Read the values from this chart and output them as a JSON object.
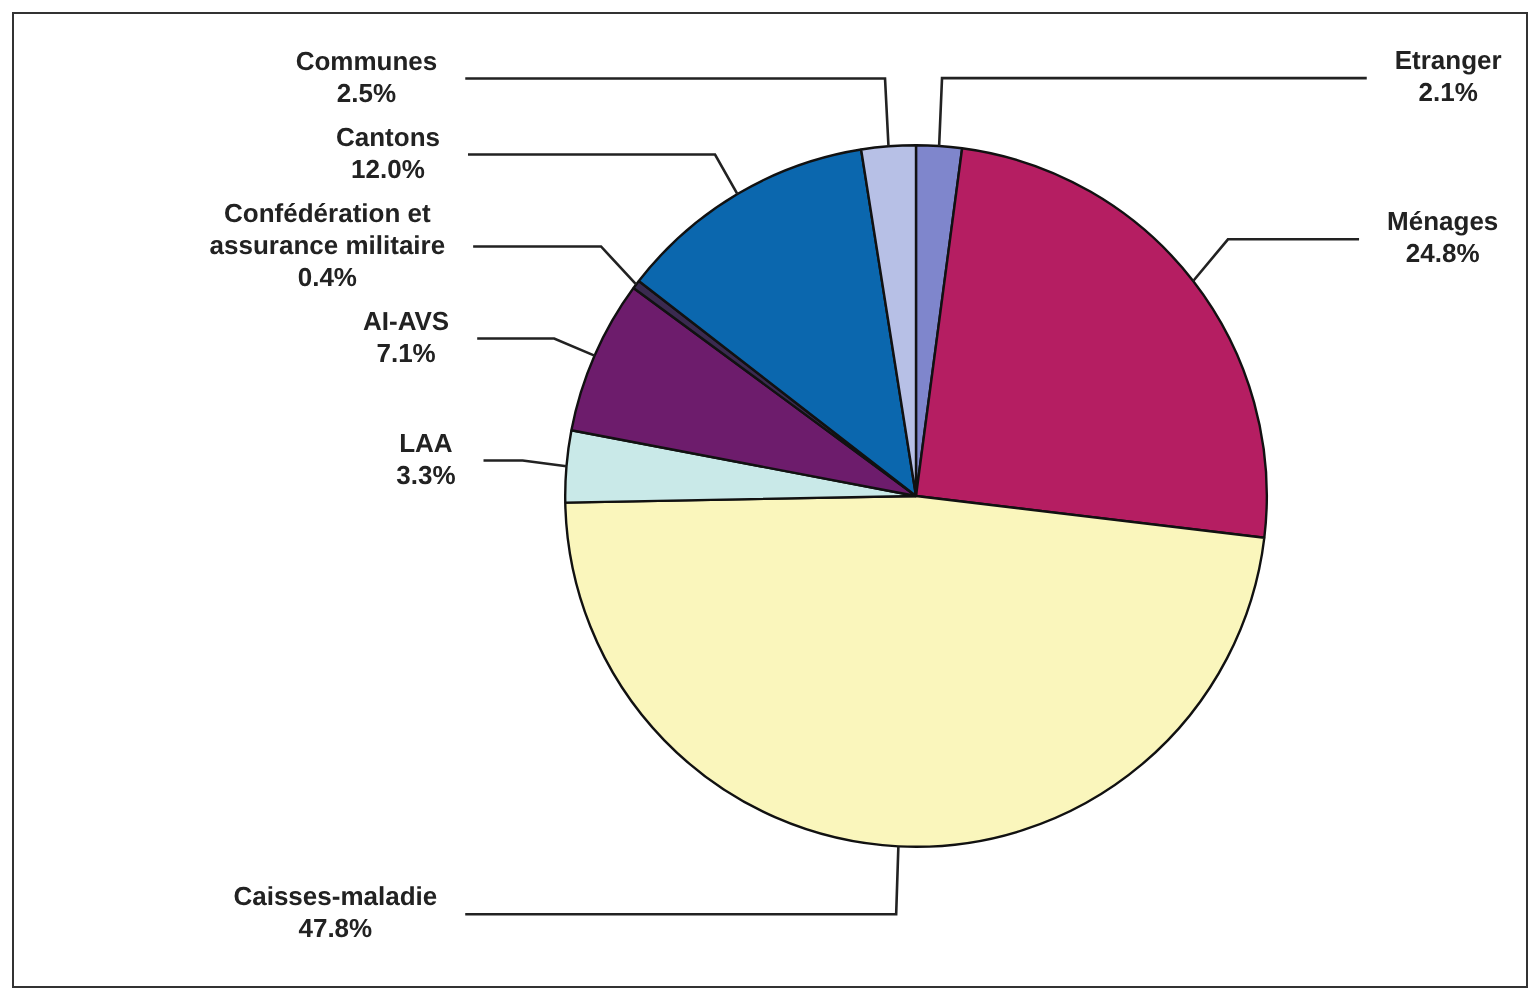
{
  "chart_data": {
    "type": "pie",
    "categories": [
      "Etranger",
      "Ménages",
      "Caisses-maladie",
      "LAA",
      "AI-AVS",
      "Confédération et\nassurance militaire",
      "Cantons",
      "Communes"
    ],
    "values": [
      2.1,
      24.8,
      47.8,
      3.3,
      7.1,
      0.4,
      12.0,
      2.5
    ],
    "colors": [
      "#7f86cc",
      "#b51e62",
      "#faf6bc",
      "#c9e9e8",
      "#6d1c6c",
      "#3a2a50",
      "#0b67ae",
      "#b7c0e6"
    ],
    "value_labels": [
      "2.1%",
      "24.8%",
      "47.8%",
      "3.3%",
      "7.1%",
      "0.4%",
      "12.0%",
      "2.5%"
    ],
    "legend": false
  }
}
